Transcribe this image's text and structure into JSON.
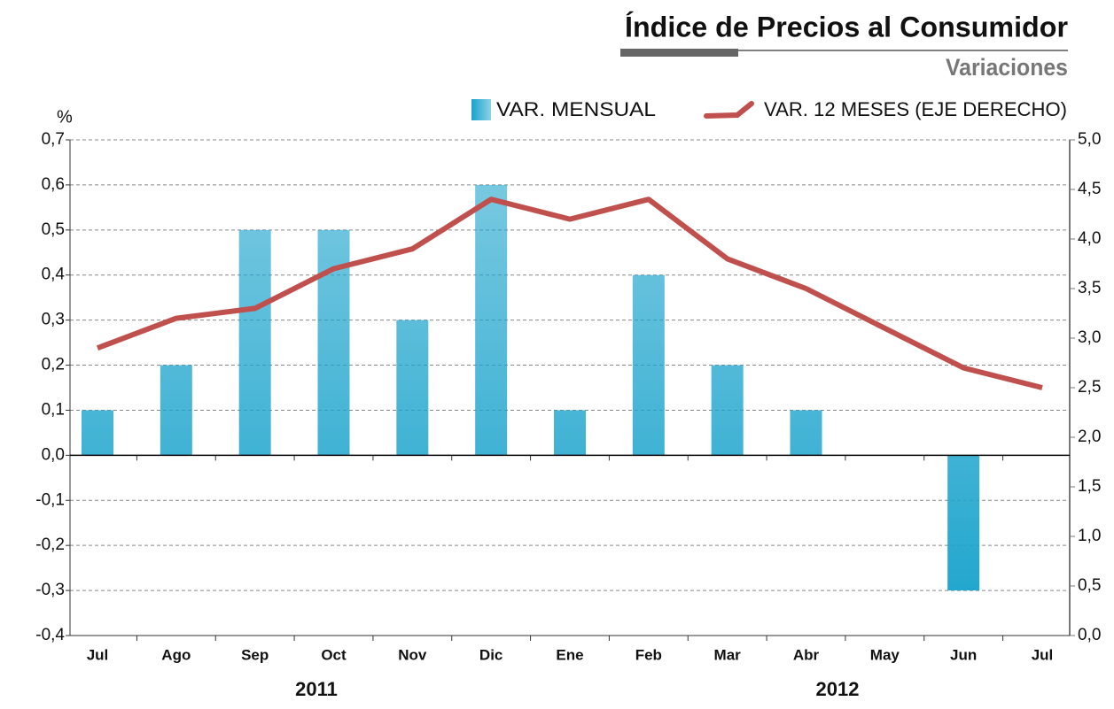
{
  "chart_data": {
    "type": "bar_line",
    "title": "Índice de Precios al Consumidor",
    "subtitle": "Variaciones",
    "y_unit": "%",
    "year_labels": [
      "2011",
      "2012"
    ],
    "categories": [
      "Jul",
      "Ago",
      "Sep",
      "Oct",
      "Nov",
      "Dic",
      "Ene",
      "Feb",
      "Mar",
      "Abr",
      "May",
      "Jun",
      "Jul"
    ],
    "series": [
      {
        "name": "VAR. MENSUAL",
        "color": "#1aa3cc",
        "type": "bar",
        "values": [
          0.1,
          0.2,
          0.5,
          0.5,
          0.3,
          0.6,
          0.1,
          0.4,
          0.2,
          0.1,
          0,
          -0.3,
          null
        ]
      },
      {
        "name": "VAR. 12 MESES (EJE DERECHO)",
        "color": "#c0504d",
        "type": "line",
        "axis": "y2",
        "values": [
          2.9,
          3.2,
          3.3,
          3.7,
          3.9,
          4.4,
          4.2,
          4.4,
          3.8,
          3.5,
          3.1,
          2.7,
          2.5
        ]
      }
    ],
    "ylim": [
      -0.4,
      0.7
    ],
    "yticks": [
      {
        "value": -0.4,
        "label": "-0,4"
      },
      {
        "value": -0.3,
        "label": "-0,3"
      },
      {
        "value": -0.2,
        "label": "-0,2"
      },
      {
        "value": -0.1,
        "label": "-0,1"
      },
      {
        "value": 0,
        "label": "0,0"
      },
      {
        "value": 0.1,
        "label": "0,1"
      },
      {
        "value": 0.2,
        "label": "0,2"
      },
      {
        "value": 0.3,
        "label": "0,3"
      },
      {
        "value": 0.4,
        "label": "0,4"
      },
      {
        "value": 0.5,
        "label": "0,5"
      },
      {
        "value": 0.6,
        "label": "0,6"
      },
      {
        "value": 0.7,
        "label": "0,7"
      }
    ],
    "y2lim": [
      0,
      5
    ],
    "y2ticks": [
      {
        "value": 0,
        "label": "0,0"
      },
      {
        "value": 0.5,
        "label": "0,5"
      },
      {
        "value": 1,
        "label": "1,0"
      },
      {
        "value": 1.5,
        "label": "1,5"
      },
      {
        "value": 2,
        "label": "2,0"
      },
      {
        "value": 2.5,
        "label": "2,5"
      },
      {
        "value": 3,
        "label": "3,0"
      },
      {
        "value": 3.5,
        "label": "3,5"
      },
      {
        "value": 4,
        "label": "4,0"
      },
      {
        "value": 4.5,
        "label": "4,5"
      },
      {
        "value": 5,
        "label": "5,0"
      }
    ],
    "grid": true
  }
}
